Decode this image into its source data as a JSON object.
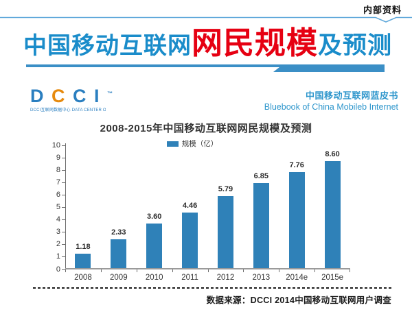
{
  "header": {
    "confidential": "内部资料",
    "title_part1": "中国移动互联网",
    "title_part2": "网民规模",
    "title_part3": "及预测",
    "logo": {
      "letter1": "D",
      "letter2": "C",
      "letter3": "C",
      "letter4": "I",
      "tm": "™",
      "tagline": "DCCI互联网数据中心  DATA CENTER OF CHINA INTERNET"
    },
    "bluebook_cn": "中国移动互联网蓝皮书",
    "bluebook_en": "Bluebook of China Mobileb Internet"
  },
  "footer": {
    "source": "数据来源：DCCI 2014中国移动互联网用户调查"
  },
  "colors": {
    "title_blue": "#1a8cca",
    "title_red": "#e60012",
    "bar_blue": "#2f81b8",
    "top_rule_blue": "#5fa8da",
    "underline_blue": "#3b8fc6",
    "logo_blue": "#2b7fc0",
    "logo_orange": "#e68a0e",
    "bluebook_blue": "#2e96cc",
    "axis_gray": "#6b6b6b",
    "text_dark": "#333333"
  },
  "chart_data": {
    "type": "bar",
    "title": "2008-2015年中国移动互联网网民规模及预测",
    "legend": [
      "规模（亿）"
    ],
    "legend_position": "top-center",
    "categories": [
      "2008",
      "2009",
      "2010",
      "2011",
      "2012",
      "2013",
      "2014e",
      "2015e"
    ],
    "values": [
      1.18,
      2.33,
      3.6,
      4.46,
      5.79,
      6.85,
      7.76,
      8.6
    ],
    "value_labels": [
      "1.18",
      "2.33",
      "3.60",
      "4.46",
      "5.79",
      "6.85",
      "7.76",
      "8.60"
    ],
    "xlabel": "",
    "ylabel": "",
    "ylim": [
      0,
      10
    ],
    "ytick_step": 1,
    "grid": false,
    "bar_color": "#2f81b8"
  }
}
